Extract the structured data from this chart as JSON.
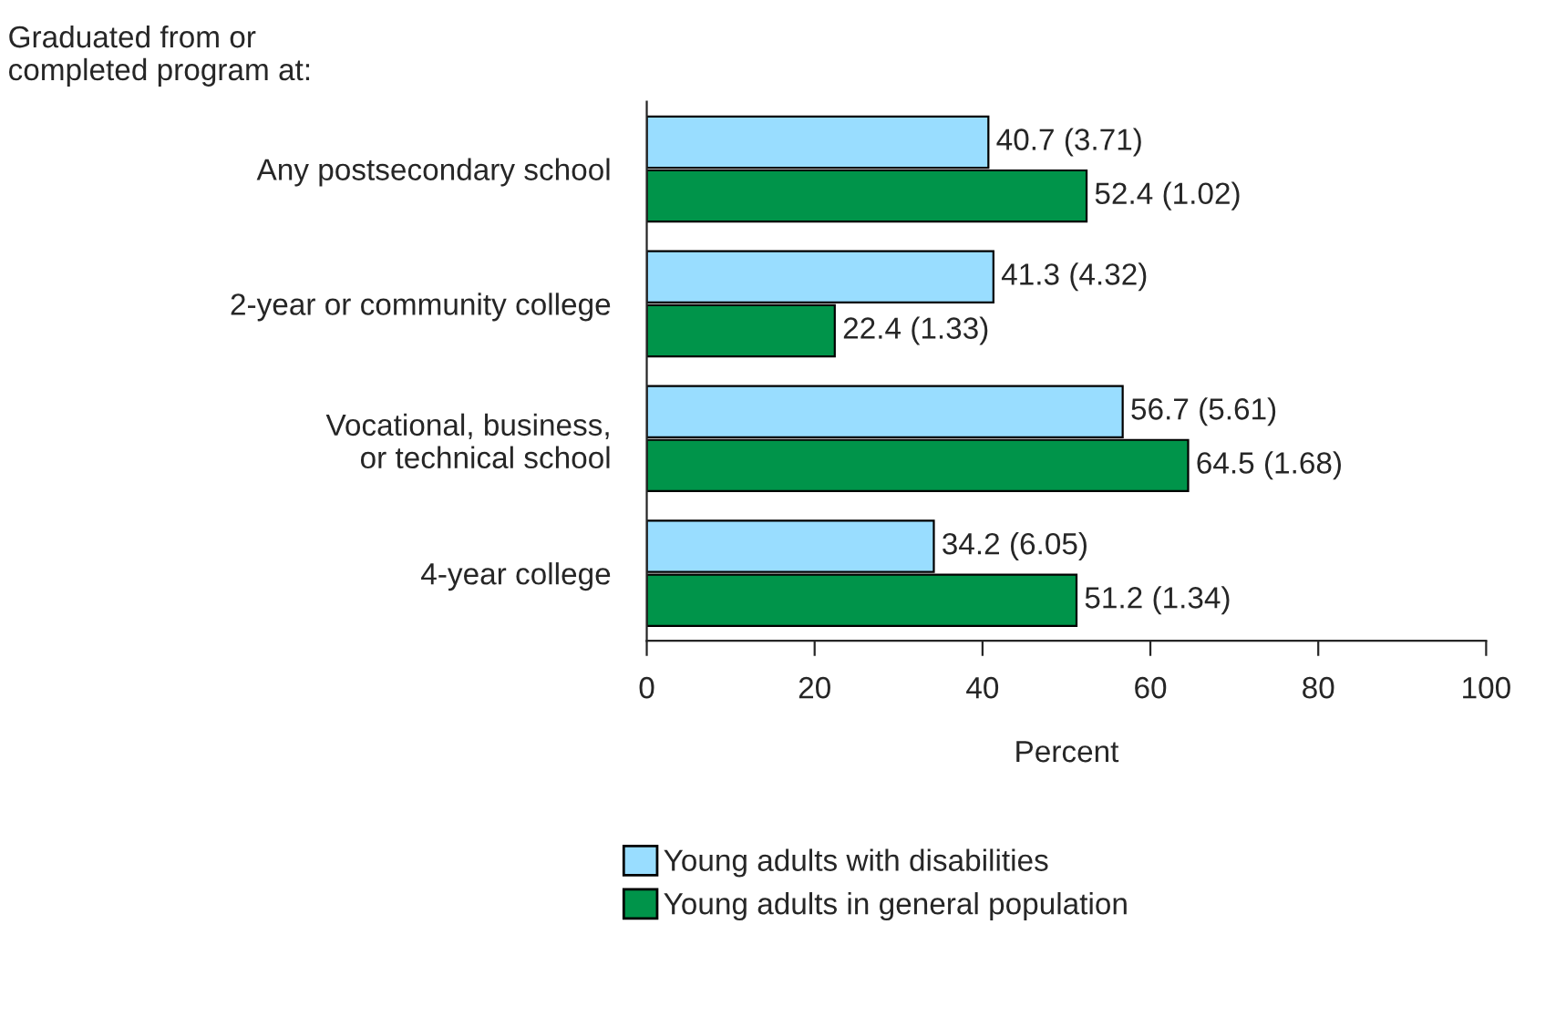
{
  "chart_data": {
    "type": "bar",
    "orientation": "horizontal",
    "ylabel": "Graduated from or\ncompleted program at:",
    "xlabel": "Percent",
    "categories": [
      "Any postsecondary school",
      "2-year or community college",
      "Vocational, business,\nor technical school",
      "4-year college"
    ],
    "series": [
      {
        "name": "Young adults with disabilities",
        "color": "#99ddff",
        "values": [
          40.7,
          41.3,
          56.7,
          34.2
        ],
        "value_labels": [
          "40.7 (3.71)",
          "41.3 (4.32)",
          "56.7 (5.61)",
          "34.2 (6.05)"
        ]
      },
      {
        "name": "Young adults in general population",
        "color": "#00944a",
        "values": [
          52.4,
          22.4,
          64.5,
          51.2
        ],
        "value_labels": [
          "52.4 (1.02)",
          "22.4 (1.33)",
          "64.5 (1.68)",
          "51.2 (1.34)"
        ]
      }
    ],
    "xlim": [
      0,
      100
    ],
    "xticks": [
      0,
      20,
      40,
      60,
      80,
      100
    ],
    "legend": "bottom",
    "grid": false
  }
}
